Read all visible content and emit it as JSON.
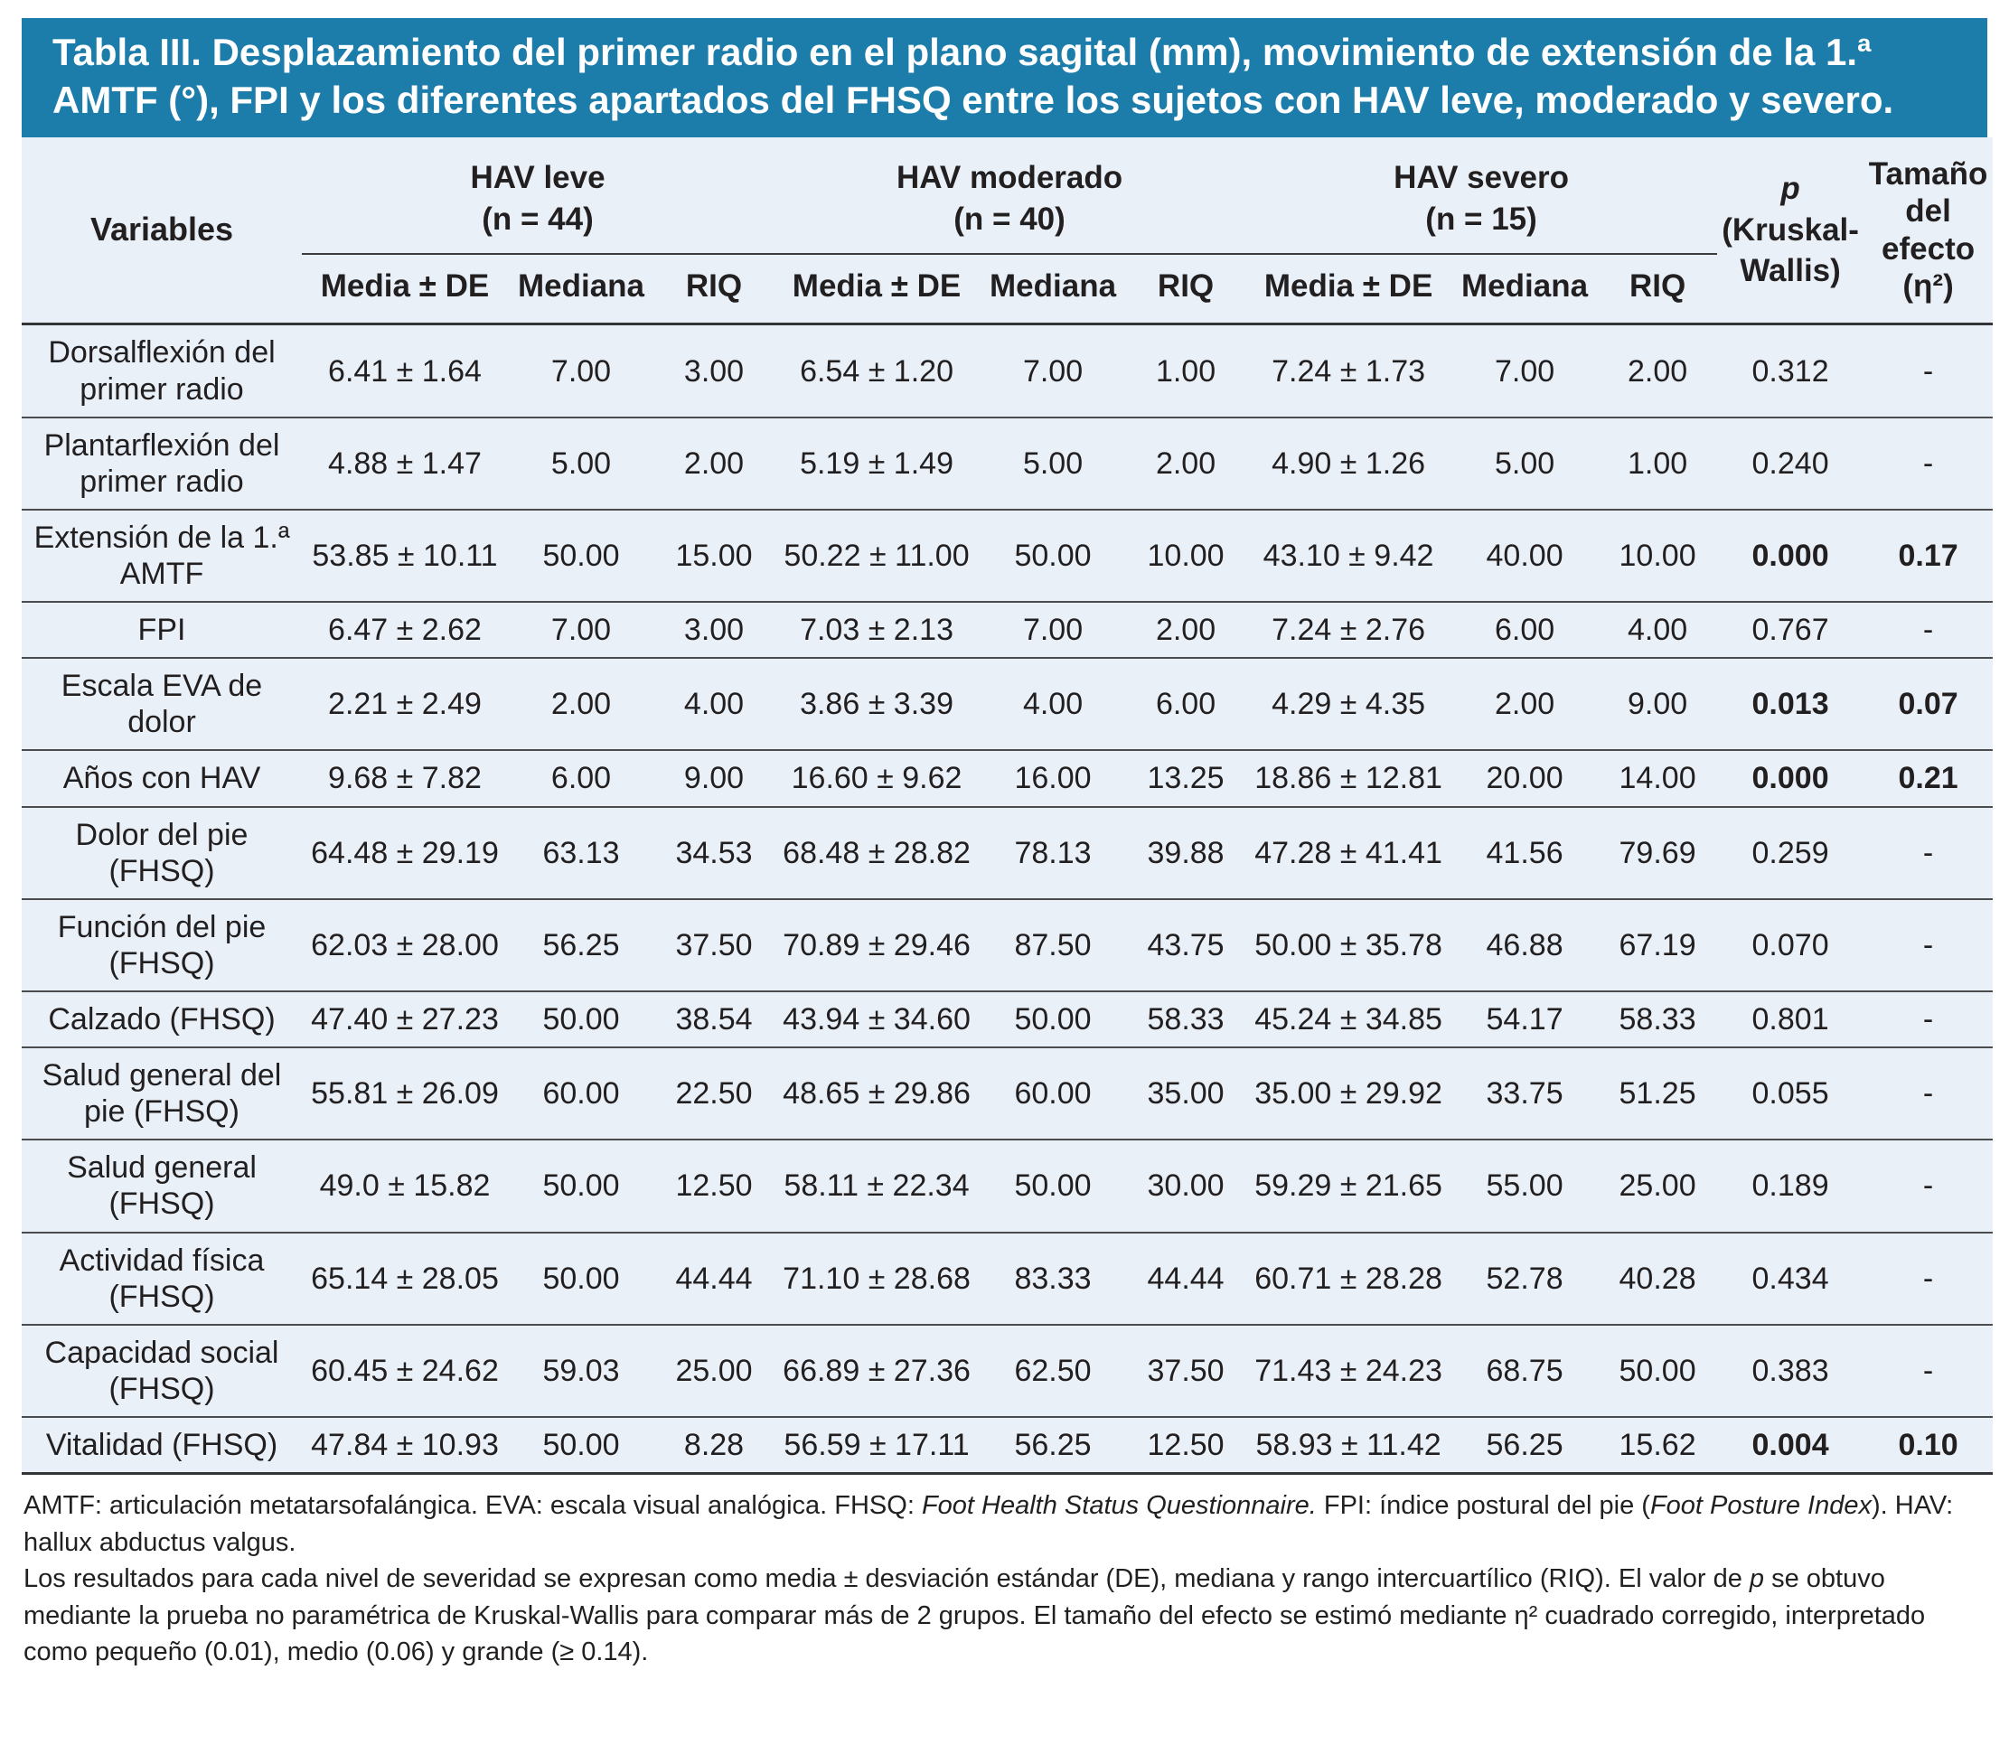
{
  "title": "Tabla III. Desplazamiento del primer radio en el plano sagital (mm), movimiento de extensión de la 1.ª AMTF (°), FPI y los diferentes apartados del FHSQ entre los sujetos con HAV leve, moderado y severo.",
  "colors": {
    "header_blue": "#1c7dab",
    "body_background": "#eaf0f8",
    "text": "#221f20",
    "rule": "#4b4c4e"
  },
  "table": {
    "variables_header": "Variables",
    "groups": [
      {
        "label": "HAV leve",
        "n": "(n = 44)"
      },
      {
        "label": "HAV moderado",
        "n": "(n = 40)"
      },
      {
        "label": "HAV severo",
        "n": "(n = 15)"
      }
    ],
    "stat_headers": [
      "Media ± DE",
      "Mediana",
      "RIQ"
    ],
    "p_header": {
      "symbol": "p",
      "test": "(Kruskal-Wallis)"
    },
    "effect_header": "Tamaño del efecto (η²)",
    "rows": [
      {
        "label": "Dorsalflexión del primer radio",
        "stats": [
          "6.41 ± 1.64",
          "7.00",
          "3.00",
          "6.54 ± 1.20",
          "7.00",
          "1.00",
          "7.24 ± 1.73",
          "7.00",
          "2.00"
        ],
        "p": "0.312",
        "effect": "-",
        "sig": false
      },
      {
        "label": "Plantarflexión del primer radio",
        "stats": [
          "4.88 ± 1.47",
          "5.00",
          "2.00",
          "5.19 ± 1.49",
          "5.00",
          "2.00",
          "4.90 ± 1.26",
          "5.00",
          "1.00"
        ],
        "p": "0.240",
        "effect": "-",
        "sig": false
      },
      {
        "label": "Extensión de la 1.ª AMTF",
        "stats": [
          "53.85 ± 10.11",
          "50.00",
          "15.00",
          "50.22 ± 11.00",
          "50.00",
          "10.00",
          "43.10 ± 9.42",
          "40.00",
          "10.00"
        ],
        "p": "0.000",
        "effect": "0.17",
        "sig": true
      },
      {
        "label": "FPI",
        "stats": [
          "6.47 ± 2.62",
          "7.00",
          "3.00",
          "7.03 ± 2.13",
          "7.00",
          "2.00",
          "7.24 ± 2.76",
          "6.00",
          "4.00"
        ],
        "p": "0.767",
        "effect": "-",
        "sig": false
      },
      {
        "label": "Escala EVA de dolor",
        "stats": [
          "2.21 ± 2.49",
          "2.00",
          "4.00",
          "3.86 ± 3.39",
          "4.00",
          "6.00",
          "4.29 ± 4.35",
          "2.00",
          "9.00"
        ],
        "p": "0.013",
        "effect": "0.07",
        "sig": true
      },
      {
        "label": "Años con HAV",
        "stats": [
          "9.68 ± 7.82",
          "6.00",
          "9.00",
          "16.60 ± 9.62",
          "16.00",
          "13.25",
          "18.86 ± 12.81",
          "20.00",
          "14.00"
        ],
        "p": "0.000",
        "effect": "0.21",
        "sig": true
      },
      {
        "label": "Dolor del pie (FHSQ)",
        "stats": [
          "64.48 ± 29.19",
          "63.13",
          "34.53",
          "68.48 ± 28.82",
          "78.13",
          "39.88",
          "47.28 ± 41.41",
          "41.56",
          "79.69"
        ],
        "p": "0.259",
        "effect": "-",
        "sig": false
      },
      {
        "label": "Función del pie (FHSQ)",
        "stats": [
          "62.03 ± 28.00",
          "56.25",
          "37.50",
          "70.89 ± 29.46",
          "87.50",
          "43.75",
          "50.00 ± 35.78",
          "46.88",
          "67.19"
        ],
        "p": "0.070",
        "effect": "-",
        "sig": false
      },
      {
        "label": "Calzado (FHSQ)",
        "stats": [
          "47.40 ± 27.23",
          "50.00",
          "38.54",
          "43.94 ± 34.60",
          "50.00",
          "58.33",
          "45.24 ± 34.85",
          "54.17",
          "58.33"
        ],
        "p": "0.801",
        "effect": "-",
        "sig": false
      },
      {
        "label": "Salud general del pie (FHSQ)",
        "stats": [
          "55.81 ± 26.09",
          "60.00",
          "22.50",
          "48.65 ± 29.86",
          "60.00",
          "35.00",
          "35.00 ± 29.92",
          "33.75",
          "51.25"
        ],
        "p": "0.055",
        "effect": "-",
        "sig": false
      },
      {
        "label": "Salud general (FHSQ)",
        "stats": [
          "49.0 ± 15.82",
          "50.00",
          "12.50",
          "58.11 ± 22.34",
          "50.00",
          "30.00",
          "59.29 ± 21.65",
          "55.00",
          "25.00"
        ],
        "p": "0.189",
        "effect": "-",
        "sig": false
      },
      {
        "label": "Actividad física (FHSQ)",
        "stats": [
          "65.14 ± 28.05",
          "50.00",
          "44.44",
          "71.10 ± 28.68",
          "83.33",
          "44.44",
          "60.71 ± 28.28",
          "52.78",
          "40.28"
        ],
        "p": "0.434",
        "effect": "-",
        "sig": false
      },
      {
        "label": "Capacidad social (FHSQ)",
        "stats": [
          "60.45 ± 24.62",
          "59.03",
          "25.00",
          "66.89 ± 27.36",
          "62.50",
          "37.50",
          "71.43 ± 24.23",
          "68.75",
          "50.00"
        ],
        "p": "0.383",
        "effect": "-",
        "sig": false
      },
      {
        "label": "Vitalidad (FHSQ)",
        "stats": [
          "47.84 ± 10.93",
          "50.00",
          "8.28",
          "56.59 ± 17.11",
          "56.25",
          "12.50",
          "58.93 ± 11.42",
          "56.25",
          "15.62"
        ],
        "p": "0.004",
        "effect": "0.10",
        "sig": true
      }
    ]
  },
  "footnotes": {
    "line1": [
      {
        "text": "AMTF: articulación metatarsofalángica. EVA: escala visual analógica. FHSQ: ",
        "italic": false
      },
      {
        "text": "Foot Health Status Questionnaire.",
        "italic": true
      },
      {
        "text": " FPI: índice postural del pie (",
        "italic": false
      },
      {
        "text": "Foot Posture Index",
        "italic": true
      },
      {
        "text": "). HAV: hallux abductus valgus.",
        "italic": false
      }
    ],
    "line2": [
      {
        "text": "Los resultados para cada nivel de severidad se expresan como media ± desviación estándar (DE), mediana y rango intercuartílico (RIQ). El valor de ",
        "italic": false
      },
      {
        "text": "p",
        "italic": true
      },
      {
        "text": " se obtuvo mediante la prueba no paramétrica de Kruskal-Wallis para comparar más de 2 grupos. El tamaño del efecto se estimó mediante η² cuadrado corregido, interpretado como pequeño (0.01), medio (0.06) y grande (≥ 0.14).",
        "italic": false
      }
    ]
  }
}
